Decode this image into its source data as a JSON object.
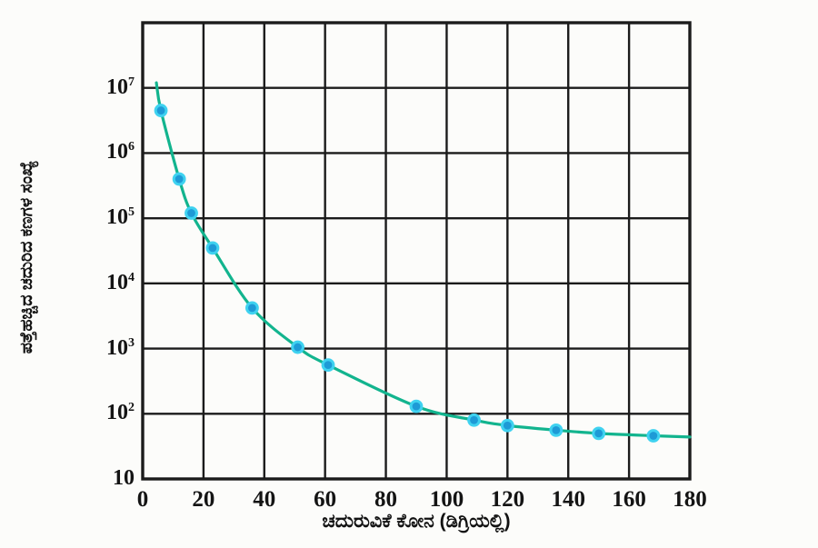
{
  "chart_data": {
    "type": "scatter",
    "title": "",
    "xlabel": "ಚದುರುವಿಕೆ ಕೋನ (ಡಿಗ್ರಿಯಲ್ಲಿ)",
    "ylabel": "ಪತ್ತೆಹಚ್ಚಿದ ಚದುರಿದ ಕಣಗಳ ಸಂಖ್ಯೆ",
    "x_scale": "linear",
    "y_scale": "log",
    "xlim": [
      0,
      180
    ],
    "ylim": [
      10,
      100000000
    ],
    "x_ticks": [
      0,
      20,
      40,
      60,
      80,
      100,
      120,
      140,
      160,
      180
    ],
    "y_tick_exponents": [
      7,
      6,
      5,
      4,
      3,
      2,
      1
    ],
    "grid": true,
    "legend": false,
    "points": [
      [
        6,
        4500000
      ],
      [
        12,
        400000
      ],
      [
        16,
        120000
      ],
      [
        23,
        35000
      ],
      [
        36,
        4200
      ],
      [
        51,
        1050
      ],
      [
        61,
        560
      ],
      [
        90,
        130
      ],
      [
        109,
        80
      ],
      [
        120,
        66
      ],
      [
        136,
        56
      ],
      [
        150,
        50
      ],
      [
        168,
        46
      ]
    ],
    "curve_start": [
      4.5,
      12000000
    ],
    "curve_end": [
      180,
      44
    ],
    "colors": {
      "grid": "#1b1b1b",
      "curve": "#12b48e",
      "marker_core": "#1e9ad6",
      "marker_ring": "#3fd2f0",
      "text": "#141414"
    }
  }
}
